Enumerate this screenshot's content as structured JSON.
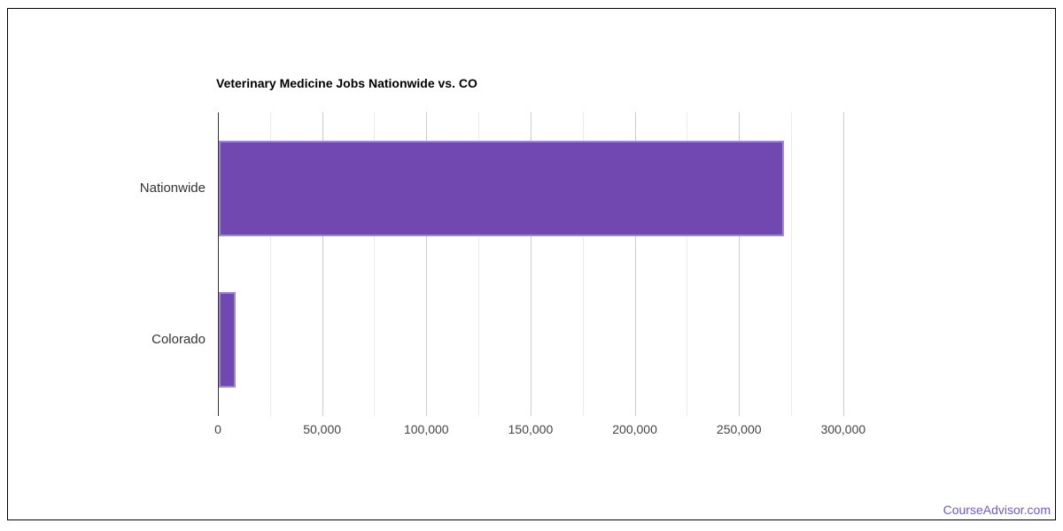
{
  "chart_data": {
    "type": "bar",
    "orientation": "horizontal",
    "title": "Veterinary Medicine Jobs Nationwide vs. CO",
    "categories": [
      "Nationwide",
      "Colorado"
    ],
    "values": [
      271000,
      8000
    ],
    "xlabel": "",
    "ylabel": "",
    "legend": "none",
    "grid": "on",
    "x_axis": {
      "max": 323000,
      "gridline_step": 25000,
      "gridline_count": 13,
      "labeled_ticks": [
        {
          "value": 0,
          "label": "0"
        },
        {
          "value": 50000,
          "label": "50,000"
        },
        {
          "value": 100000,
          "label": "100,000"
        },
        {
          "value": 150000,
          "label": "150,000"
        },
        {
          "value": 200000,
          "label": "200,000"
        },
        {
          "value": 250000,
          "label": "250,000"
        },
        {
          "value": 300000,
          "label": "300,000"
        }
      ]
    },
    "colors": {
      "bar_fill": "#7147b0",
      "bar_border": "#9d86d2",
      "gridline_major": "#cccccc",
      "gridline_minor": "#ebebeb",
      "axis_line": "#333333",
      "title_color": "#000000",
      "category_label_color": "#333333",
      "tick_label_color": "#444444"
    }
  },
  "footer": {
    "link_label": "CourseAdvisor.com",
    "link_color": "#7158c4"
  }
}
